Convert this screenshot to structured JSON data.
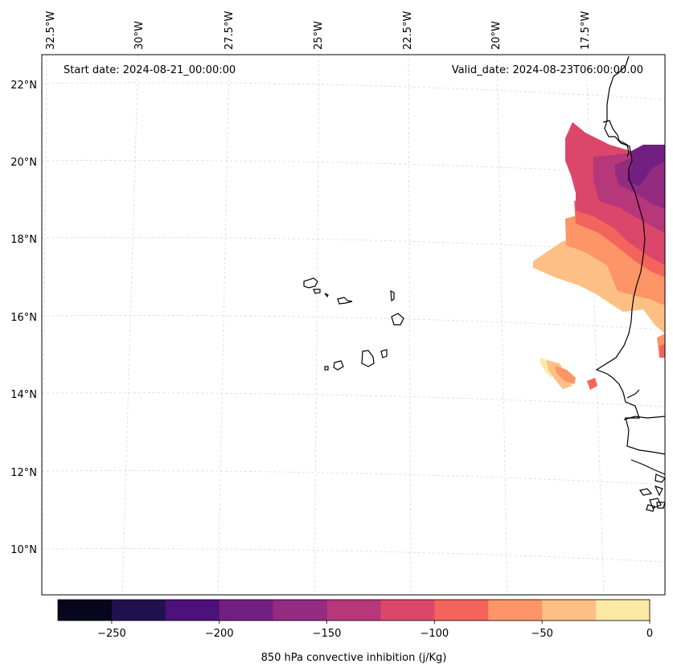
{
  "map": {
    "start_date": "Start date: 2024-08-21_00:00:00",
    "valid_date": "Valid_date: 2024-08-23T06:00:00.00",
    "lon_labels": [
      "32.5°W",
      "30°W",
      "27.5°W",
      "25°W",
      "22.5°W",
      "20°W",
      "17.5°W"
    ],
    "lat_labels": [
      "22°N",
      "20°N",
      "18°N",
      "16°N",
      "14°N",
      "12°N",
      "10°N"
    ],
    "colors": {
      "coastline": "#000000",
      "gridline": "#cccccc"
    }
  },
  "colorbar": {
    "title": "850 hPa convective inhibition (j/Kg)",
    "min": -275,
    "max": 0,
    "ticks": [
      -250,
      -200,
      -150,
      -100,
      -50,
      0
    ],
    "tick_labels": [
      "−250",
      "−200",
      "−150",
      "−100",
      "−50",
      "0"
    ],
    "bins": [
      {
        "from": -275,
        "to": -250,
        "color": "#07061c"
      },
      {
        "from": -250,
        "to": -225,
        "color": "#21114e"
      },
      {
        "from": -225,
        "to": -200,
        "color": "#4c117b"
      },
      {
        "from": -200,
        "to": -175,
        "color": "#721f81"
      },
      {
        "from": -175,
        "to": -150,
        "color": "#932b80"
      },
      {
        "from": -150,
        "to": -125,
        "color": "#b6377a"
      },
      {
        "from": -125,
        "to": -100,
        "color": "#db476a"
      },
      {
        "from": -100,
        "to": -75,
        "color": "#f3655c"
      },
      {
        "from": -75,
        "to": -50,
        "color": "#fd9567"
      },
      {
        "from": -50,
        "to": -25,
        "color": "#febf84"
      },
      {
        "from": -25,
        "to": 0,
        "color": "#fde9a6"
      }
    ]
  }
}
